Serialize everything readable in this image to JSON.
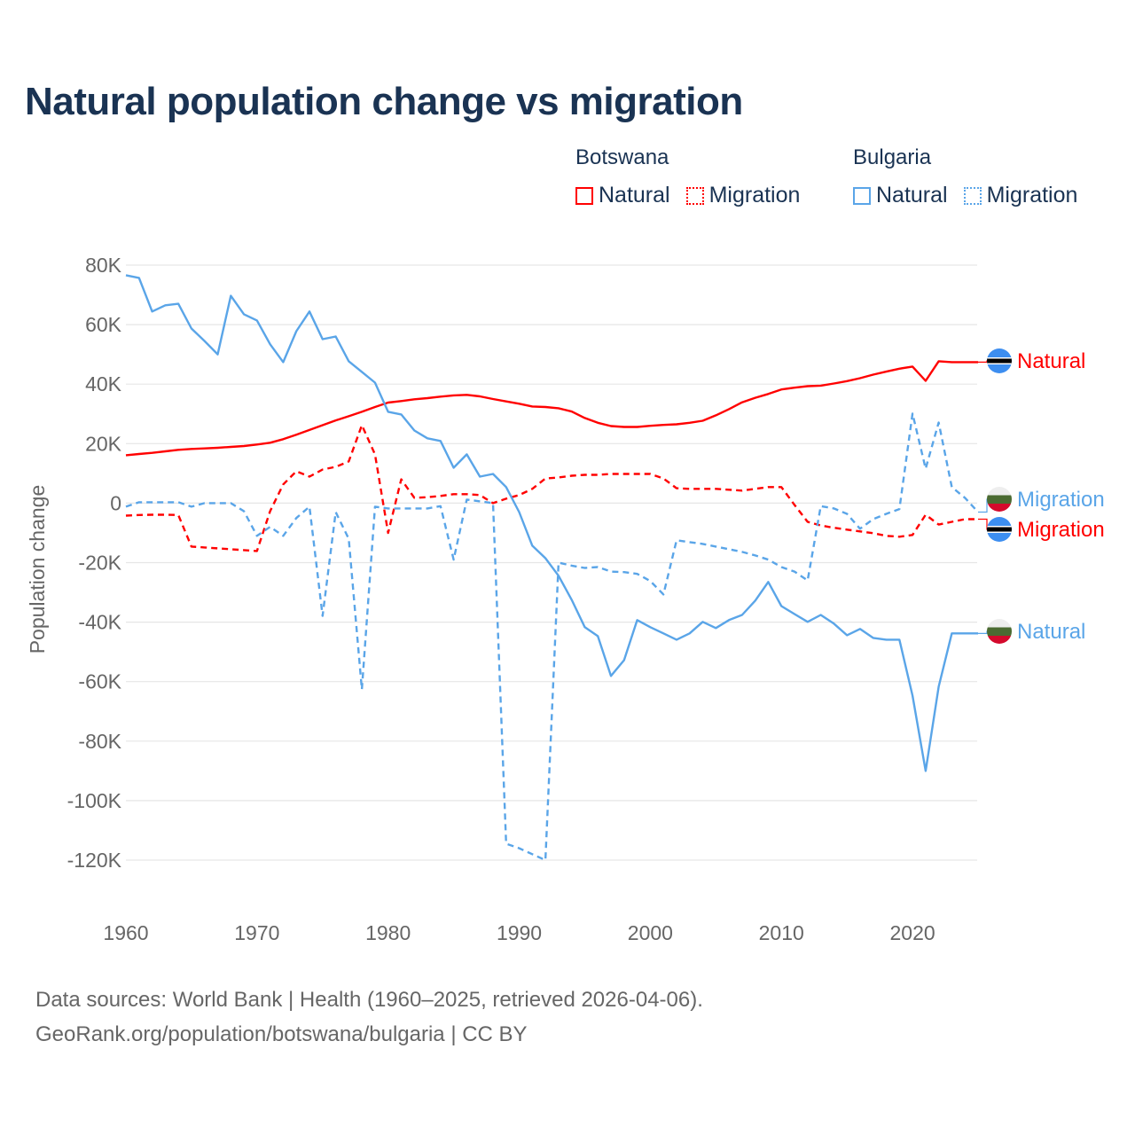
{
  "title": "Natural population change vs migration",
  "legend": {
    "groups": [
      {
        "name": "Botswana",
        "color": "#ff0000",
        "items": [
          {
            "label": "Natural",
            "style": "solid"
          },
          {
            "label": "Migration",
            "style": "dotted"
          }
        ]
      },
      {
        "name": "Bulgaria",
        "color": "#5aa5e8",
        "items": [
          {
            "label": "Natural",
            "style": "solid"
          },
          {
            "label": "Migration",
            "style": "dotted"
          }
        ]
      }
    ]
  },
  "footer": {
    "line1": "Data sources: World Bank | Health (1960–2025, retrieved 2026-04-06).",
    "line2": "GeoRank.org/population/botswana/bulgaria | CC BY"
  },
  "chart_data": {
    "type": "line",
    "title": "Natural population change vs migration",
    "xlabel": "",
    "ylabel": "Population change",
    "xlim": [
      1960,
      2025
    ],
    "ylim": [
      -120000,
      80000
    ],
    "x_ticks": [
      "1960",
      "1970",
      "1980",
      "1990",
      "2000",
      "2010",
      "2020"
    ],
    "y_ticks": [
      "80K",
      "60K",
      "40K",
      "20K",
      "0",
      "-20K",
      "-40K",
      "-60K",
      "-80K",
      "-100K",
      "-120K"
    ],
    "grid": true,
    "units": "thousands",
    "x_start": 1960,
    "series": [
      {
        "name": "Botswana Natural",
        "end_label": "Natural",
        "country": "Botswana",
        "color": "#ff0000",
        "dash": false,
        "flag": "botswana-flag",
        "values": [
          16.1,
          16.5,
          16.9,
          17.4,
          17.9,
          18.2,
          18.4,
          18.6,
          18.9,
          19.2,
          19.7,
          20.3,
          21.5,
          23,
          24.6,
          26.2,
          27.8,
          29.2,
          30.7,
          32.3,
          33.8,
          34.3,
          34.9,
          35.3,
          35.8,
          36.2,
          36.4,
          35.9,
          35,
          34.2,
          33.4,
          32.5,
          32.3,
          31.9,
          30.8,
          28.6,
          27,
          25.9,
          25.6,
          25.6,
          26,
          26.3,
          26.5,
          27,
          27.7,
          29.5,
          31.6,
          33.9,
          35.4,
          36.7,
          38.2,
          38.8,
          39.3,
          39.5,
          40.2,
          41,
          42,
          43.2,
          44.2,
          45.2,
          45.9,
          41.1,
          47.7,
          47.4,
          47.4,
          47.4
        ]
      },
      {
        "name": "Botswana Migration",
        "end_label": "Migration",
        "country": "Botswana",
        "color": "#ff0000",
        "dash": true,
        "flag": "botswana-flag",
        "values": [
          -4.2,
          -4,
          -3.9,
          -3.9,
          -4,
          -14.6,
          -14.9,
          -15.2,
          -15.5,
          -15.8,
          -16.1,
          -2.7,
          6.3,
          10.7,
          8.9,
          11.3,
          12.2,
          14,
          26.2,
          16.4,
          -10,
          8,
          1.8,
          2,
          2.4,
          3,
          3,
          2.7,
          0,
          1.5,
          2.7,
          4.8,
          8.3,
          8.6,
          9.2,
          9.5,
          9.5,
          9.8,
          9.8,
          9.8,
          9.8,
          8.3,
          5,
          4.8,
          4.8,
          4.8,
          4.5,
          4.2,
          4.8,
          5.4,
          5.4,
          -0.6,
          -6.3,
          -7.5,
          -8.3,
          -8.9,
          -9.5,
          -10.1,
          -11,
          -11.3,
          -10.7,
          -3.9,
          -7.2,
          -6.3,
          -5.4,
          -5.4
        ]
      },
      {
        "name": "Bulgaria Natural",
        "end_label": "Natural",
        "country": "Bulgaria",
        "color": "#5aa5e8",
        "dash": false,
        "flag": "bulgaria-flag",
        "values": [
          76.6,
          75.7,
          64.4,
          66.5,
          67,
          58.7,
          54.5,
          50,
          69.7,
          63.5,
          61.4,
          53.4,
          47.4,
          57.8,
          64.4,
          55.1,
          56,
          47.7,
          44.1,
          40.5,
          30.7,
          29.8,
          24.4,
          21.8,
          20.9,
          11.9,
          16.4,
          8.9,
          9.8,
          5.4,
          -3,
          -14.3,
          -18.5,
          -24.4,
          -32.5,
          -41.7,
          -44.7,
          -58.1,
          -52.8,
          -39.3,
          -41.7,
          -43.8,
          -45.9,
          -43.8,
          -39.9,
          -42,
          -39.3,
          -37.6,
          -32.8,
          -26.5,
          -34.6,
          -37.3,
          -39.9,
          -37.6,
          -40.5,
          -44.4,
          -42.3,
          -45.3,
          -45.9,
          -45.9,
          -64.7,
          -90,
          -61.7,
          -43.8,
          -43.8,
          -43.8
        ]
      },
      {
        "name": "Bulgaria Migration",
        "end_label": "Migration",
        "country": "Bulgaria",
        "color": "#5aa5e8",
        "dash": true,
        "flag": "bulgaria-flag",
        "values": [
          -1.2,
          0.3,
          0.3,
          0.3,
          0.3,
          -1.2,
          0,
          0,
          0,
          -2.7,
          -11,
          -8,
          -11,
          -5,
          -1.2,
          -37.9,
          -3,
          -12,
          -62.6,
          -1.2,
          -1.8,
          -1.8,
          -1.8,
          -1.8,
          -1,
          -19,
          1.2,
          0.6,
          0,
          -114.5,
          -116,
          -118,
          -120,
          -20,
          -21,
          -21.8,
          -21.5,
          -23,
          -23.2,
          -23.8,
          -26.2,
          -30.7,
          -12.5,
          -13.1,
          -13.7,
          -14.6,
          -15.5,
          -16.4,
          -17.6,
          -19,
          -21.5,
          -23,
          -26,
          -1,
          -1.8,
          -3.6,
          -8.6,
          -5.4,
          -3.6,
          -2,
          30.1,
          11.6,
          27.1,
          5.4,
          1.8,
          -3
        ]
      }
    ]
  }
}
